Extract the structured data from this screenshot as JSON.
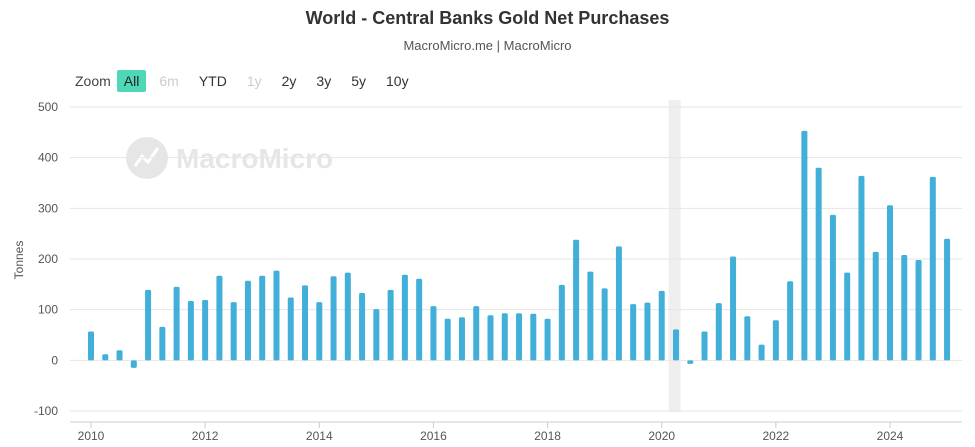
{
  "header": {
    "title": "World - Central Banks Gold Net Purchases",
    "subtitle": "MacroMicro.me | MacroMicro"
  },
  "zoom": {
    "label": "Zoom",
    "options": [
      {
        "label": "All",
        "state": "active"
      },
      {
        "label": "6m",
        "state": "disabled"
      },
      {
        "label": "YTD",
        "state": "normal"
      },
      {
        "label": "1y",
        "state": "disabled"
      },
      {
        "label": "2y",
        "state": "normal"
      },
      {
        "label": "3y",
        "state": "normal"
      },
      {
        "label": "5y",
        "state": "normal"
      },
      {
        "label": "10y",
        "state": "normal"
      }
    ]
  },
  "watermark": {
    "text": "MacroMicro"
  },
  "colors": {
    "bar": "#41afd8",
    "recession": "#efefef",
    "grid": "#e6e6e6",
    "watermark": "#e6e6e6"
  },
  "chart_data": {
    "type": "bar",
    "title": "World - Central Banks Gold Net Purchases",
    "subtitle": "MacroMicro.me | MacroMicro",
    "ylabel": "Tonnes",
    "xlabel": "",
    "ylim": [
      -100,
      500
    ],
    "yticks": [
      -100,
      0,
      100,
      200,
      300,
      400,
      500
    ],
    "xlim": [
      2010.0,
      2025.25
    ],
    "xticks": [
      2010,
      2012,
      2014,
      2016,
      2018,
      2020,
      2022,
      2024
    ],
    "grid": true,
    "legend": "none",
    "shaded_region": {
      "start": 2020.12,
      "end": 2020.33
    },
    "series": [
      {
        "name": "Central Banks Gold Net Purchases",
        "x": [
          2010.0,
          2010.25,
          2010.5,
          2010.75,
          2011.0,
          2011.25,
          2011.5,
          2011.75,
          2012.0,
          2012.25,
          2012.5,
          2012.75,
          2013.0,
          2013.25,
          2013.5,
          2013.75,
          2014.0,
          2014.25,
          2014.5,
          2014.75,
          2015.0,
          2015.25,
          2015.5,
          2015.75,
          2016.0,
          2016.25,
          2016.5,
          2016.75,
          2017.0,
          2017.25,
          2017.5,
          2017.75,
          2018.0,
          2018.25,
          2018.5,
          2018.75,
          2019.0,
          2019.25,
          2019.5,
          2019.75,
          2020.0,
          2020.25,
          2020.5,
          2020.75,
          2021.0,
          2021.25,
          2021.5,
          2021.75,
          2022.0,
          2022.25,
          2022.5,
          2022.75,
          2023.0,
          2023.25,
          2023.5,
          2023.75,
          2024.0,
          2024.25,
          2024.5,
          2024.75,
          2025.0
        ],
        "values": [
          57,
          12,
          20,
          -15,
          139,
          66,
          145,
          117,
          119,
          167,
          115,
          157,
          167,
          177,
          124,
          148,
          115,
          166,
          173,
          133,
          101,
          139,
          169,
          161,
          107,
          82,
          85,
          107,
          89,
          93,
          93,
          92,
          82,
          149,
          238,
          175,
          142,
          225,
          111,
          114,
          137,
          61,
          -7,
          57,
          113,
          205,
          87,
          31,
          79,
          156,
          453,
          380,
          287,
          173,
          364,
          214,
          306,
          208,
          198,
          362,
          240
        ]
      }
    ]
  }
}
